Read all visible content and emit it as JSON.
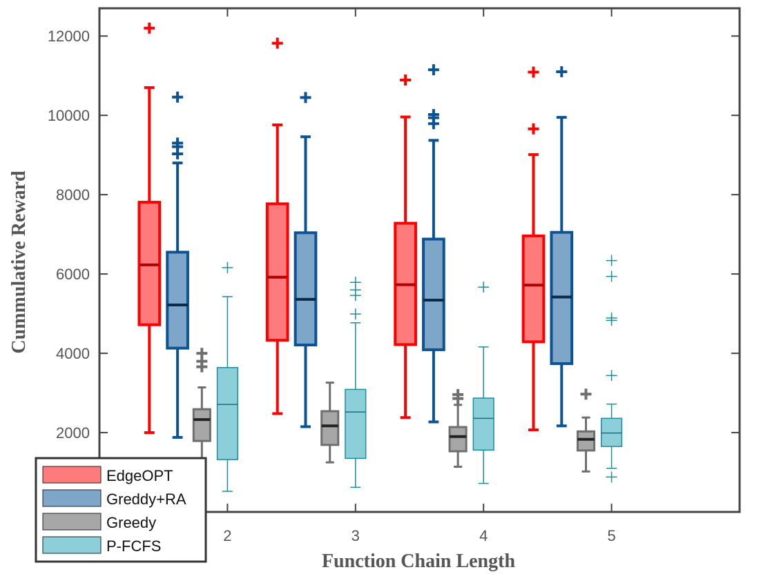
{
  "chart_data": {
    "type": "box",
    "title": "",
    "xlabel": "Function Chain Length",
    "ylabel": "Cummulative Reward",
    "categories": [
      "2",
      "3",
      "4",
      "5"
    ],
    "xlim": [
      1,
      6
    ],
    "ylim": [
      0,
      12700
    ],
    "yticks": [
      2000,
      4000,
      6000,
      8000,
      10000,
      12000
    ],
    "grid": false,
    "legend_position": "bottom-left",
    "series": [
      {
        "name": "EdgeOPT",
        "fill": "#ff7b7b",
        "stroke": "#ff0000",
        "median_stroke": "#b00000",
        "boxes": [
          {
            "whisker_low": 2000,
            "q1": 4720,
            "median": 6230,
            "q3": 7810,
            "whisker_high": 10700,
            "outliers": [
              12200
            ]
          },
          {
            "whisker_low": 2480,
            "q1": 4330,
            "median": 5920,
            "q3": 7770,
            "whisker_high": 9760,
            "outliers": [
              11820
            ]
          },
          {
            "whisker_low": 2380,
            "q1": 4220,
            "median": 5730,
            "q3": 7280,
            "whisker_high": 9960,
            "outliers": [
              10890
            ]
          },
          {
            "whisker_low": 2070,
            "q1": 4290,
            "median": 5720,
            "q3": 6960,
            "whisker_high": 9010,
            "outliers": [
              9660,
              11090
            ]
          }
        ]
      },
      {
        "name": "Greddy+RA",
        "fill": "#7ea6c9",
        "stroke": "#0b5394",
        "median_stroke": "#0a2a4a",
        "boxes": [
          {
            "whisker_low": 1880,
            "q1": 4130,
            "median": 5220,
            "q3": 6550,
            "whisker_high": 8800,
            "outliers": [
              9030,
              9210,
              9300,
              10460
            ]
          },
          {
            "whisker_low": 2150,
            "q1": 4210,
            "median": 5360,
            "q3": 7040,
            "whisker_high": 9460,
            "outliers": [
              10450
            ]
          },
          {
            "whisker_low": 2270,
            "q1": 4090,
            "median": 5340,
            "q3": 6880,
            "whisker_high": 9370,
            "outliers": [
              9790,
              9940,
              10020,
              11150
            ]
          },
          {
            "whisker_low": 2170,
            "q1": 3740,
            "median": 5420,
            "q3": 7050,
            "whisker_high": 9950,
            "outliers": [
              11100
            ]
          }
        ]
      },
      {
        "name": "Greedy",
        "fill": "#a7a7a7",
        "stroke": "#6e6e6e",
        "median_stroke": "#222222",
        "boxes": [
          {
            "whisker_low": 1200,
            "q1": 1790,
            "median": 2330,
            "q3": 2590,
            "whisker_high": 3140,
            "outliers": [
              3660,
              3800,
              4000
            ]
          },
          {
            "whisker_low": 1250,
            "q1": 1690,
            "median": 2170,
            "q3": 2540,
            "whisker_high": 3260,
            "outliers": []
          },
          {
            "whisker_low": 1140,
            "q1": 1530,
            "median": 1900,
            "q3": 2140,
            "whisker_high": 2700,
            "outliers": [
              2860,
              2960
            ]
          },
          {
            "whisker_low": 1020,
            "q1": 1550,
            "median": 1830,
            "q3": 2030,
            "whisker_high": 2380,
            "outliers": [
              2970
            ]
          }
        ]
      },
      {
        "name": "P-FCFS",
        "fill": "#8dcfd8",
        "stroke": "#1a8d9e",
        "median_stroke": "#1a6d7e",
        "boxes": [
          {
            "whisker_low": 520,
            "q1": 1320,
            "median": 2710,
            "q3": 3640,
            "whisker_high": 5430,
            "outliers": [
              6160
            ]
          },
          {
            "whisker_low": 620,
            "q1": 1350,
            "median": 2520,
            "q3": 3090,
            "whisker_high": 4770,
            "outliers": [
              4990,
              5460,
              5600,
              5790
            ]
          },
          {
            "whisker_low": 720,
            "q1": 1560,
            "median": 2360,
            "q3": 2870,
            "whisker_high": 4160,
            "outliers": [
              5670
            ]
          },
          {
            "whisker_low": 1100,
            "q1": 1650,
            "median": 1990,
            "q3": 2360,
            "whisker_high": 2720,
            "outliers": [
              880,
              3440,
              4830,
              4890,
              5940,
              6340
            ]
          }
        ]
      }
    ]
  }
}
